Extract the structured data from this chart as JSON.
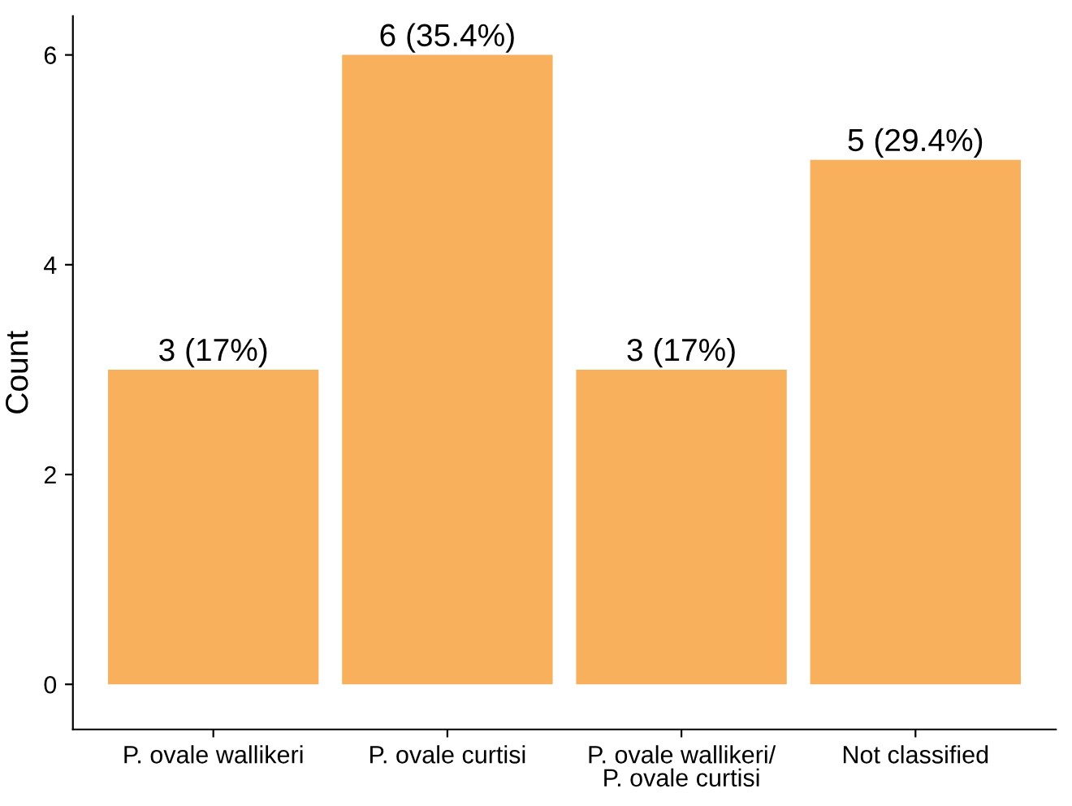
{
  "chart_data": {
    "type": "bar",
    "ylabel": "Count",
    "categories": [
      "P. ovale wallikeri",
      "P. ovale curtisi",
      "P. ovale wallikeri/\nP. ovale curtisi",
      "Not classified"
    ],
    "values": [
      3,
      6,
      3,
      5
    ],
    "value_labels": [
      "3 (17%)",
      "6 (35.4%)",
      "3 (17%)",
      "5 (29.4%)"
    ],
    "color": "#f9b05c",
    "ylim": [
      -0.43,
      6.37
    ],
    "yticks": [
      0,
      2,
      4,
      6
    ],
    "grid": false,
    "legend": false
  }
}
